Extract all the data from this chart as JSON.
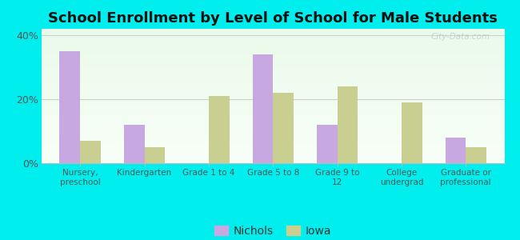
{
  "title": "School Enrollment by Level of School for Male Students",
  "categories": [
    "Nursery,\npreschool",
    "Kindergarten",
    "Grade 1 to 4",
    "Grade 5 to 8",
    "Grade 9 to\n12",
    "College\nundergrad",
    "Graduate or\nprofessional"
  ],
  "nichols": [
    35,
    12,
    0,
    34,
    12,
    0,
    8
  ],
  "iowa": [
    7,
    5,
    21,
    22,
    24,
    19,
    5
  ],
  "nichols_color": "#c8a8e0",
  "iowa_color": "#c8cf90",
  "background_outer": "#00eeee",
  "ylim": [
    0,
    42
  ],
  "yticks": [
    0,
    20,
    40
  ],
  "ytick_labels": [
    "0%",
    "20%",
    "40%"
  ],
  "bar_width": 0.32,
  "title_fontsize": 13,
  "legend_labels": [
    "Nichols",
    "Iowa"
  ],
  "watermark": "City-Data.com"
}
